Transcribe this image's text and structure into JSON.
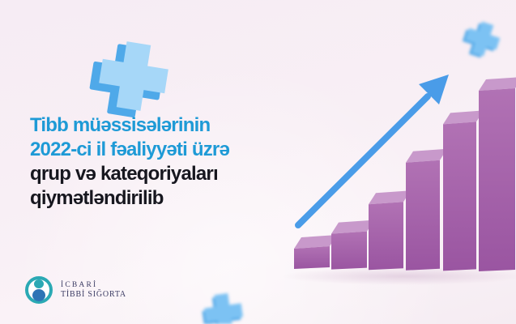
{
  "title": {
    "lines": [
      {
        "text": "Tibb müəssisələrinin",
        "color": "blue"
      },
      {
        "text": "2022-ci il fəaliyyəti üzrə",
        "color": "blue"
      },
      {
        "text": "qrup və kateqoriyaları",
        "color": "dark"
      },
      {
        "text": "qiymətləndirilib",
        "color": "dark"
      }
    ],
    "accent_color": "#1e9ad6",
    "dark_color": "#17171f"
  },
  "logo": {
    "line1": "İCBARİ",
    "line2": "TİBBİ SIĞORTA",
    "ring_color": "#2ba9b4",
    "body_color": "#2e74b5",
    "text_color": "#3c3c64"
  },
  "decor": {
    "big_cross_front": "#a6d7f8",
    "big_cross_side": "#4fa9e9",
    "small_cross_front": "#7cc2f3",
    "small_cross_side": "#58abe8",
    "background_color": "#f7edf4"
  },
  "chart_data": {
    "type": "bar",
    "title": "",
    "xlabel": "",
    "ylabel": "",
    "categories": [
      "bar-1",
      "bar-2",
      "bar-3",
      "bar-4",
      "bar-5",
      "bar-6"
    ],
    "values": [
      25,
      44,
      81,
      133,
      181,
      223
    ],
    "unit": "relative height (px, unlabeled decorative chart)",
    "trend": "increasing left to right with upward arrow",
    "legend": "none",
    "grid": "off",
    "bar_front_top": "#b172b4",
    "bar_front_bottom": "#9a55a1",
    "bar_top_face": "#c899cb",
    "arrow_color": "#4a9ce8",
    "shadow_color": "#b58ab3"
  }
}
